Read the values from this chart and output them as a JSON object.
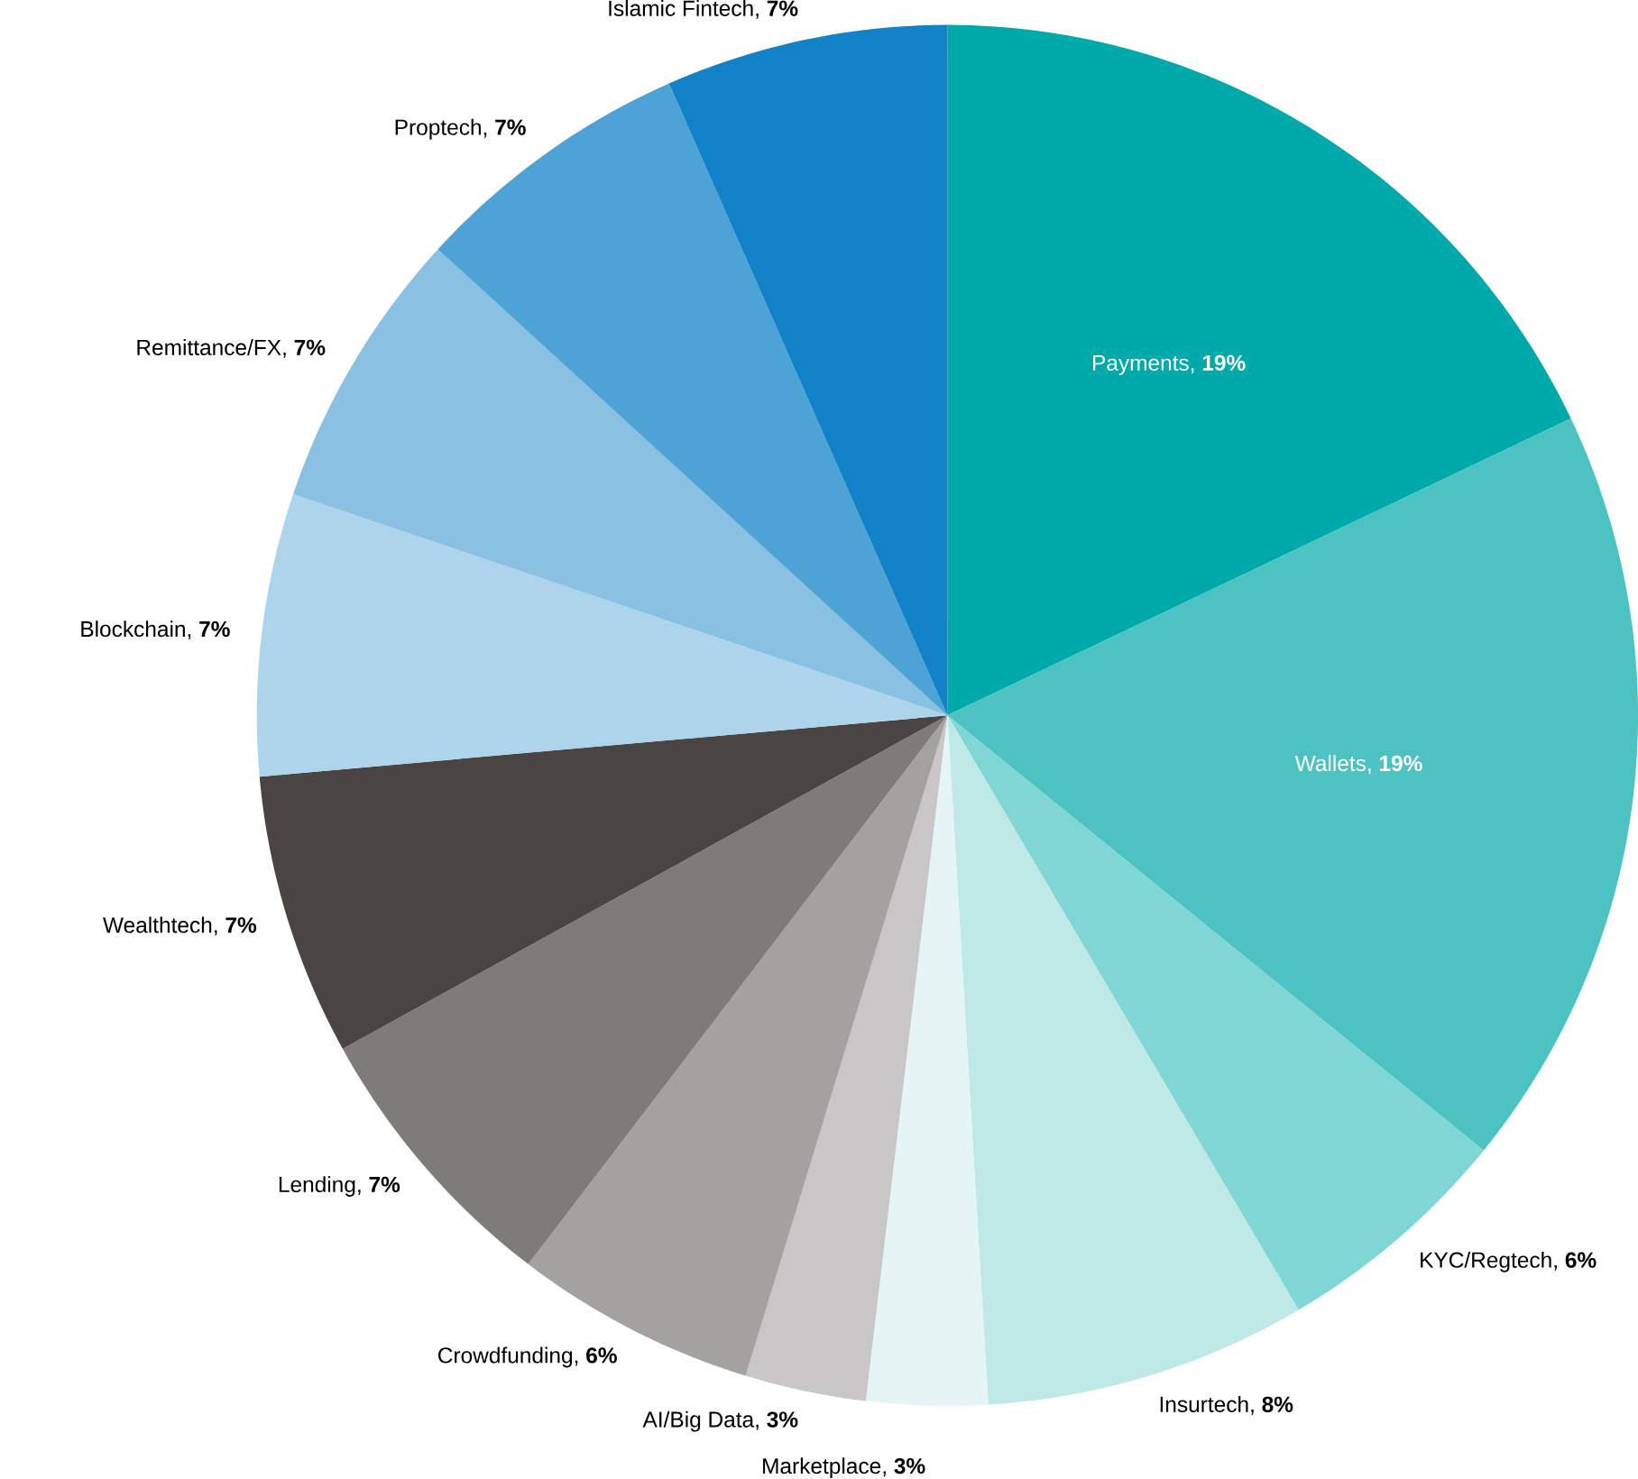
{
  "chart_data": {
    "type": "pie",
    "categories": [
      "Payments",
      "Wallets",
      "KYC/Regtech",
      "Insurtech",
      "Marketplace",
      "AI/Big Data",
      "Crowdfunding",
      "Lending",
      "Wealthtech",
      "Blockchain",
      "Remittance/FX",
      "Proptech",
      "Islamic Fintech"
    ],
    "values": [
      19,
      19,
      6,
      8,
      3,
      3,
      6,
      7,
      7,
      7,
      7,
      7,
      7
    ],
    "value_labels": [
      ", **19%**",
      ", **19%**",
      ", **6%**",
      ", **8%**",
      ", **3%**",
      ", **3%**",
      ", **6%**",
      ", **7%**",
      ", **7%**",
      ", **7%**",
      ", **7%**",
      ", **7%**",
      ", **7%**"
    ],
    "colors": [
      "#00a9aa",
      "#4cc3c2",
      "#80d6d4",
      "#bfe9e7",
      "#e5f5f5",
      "#c8c6c6",
      "#a3a2a0",
      "#7f7b79",
      "#4a4542",
      "#aed4ec",
      "#8ac0e2",
      "#4ea3d6",
      "#1182c8"
    ]
  }
}
